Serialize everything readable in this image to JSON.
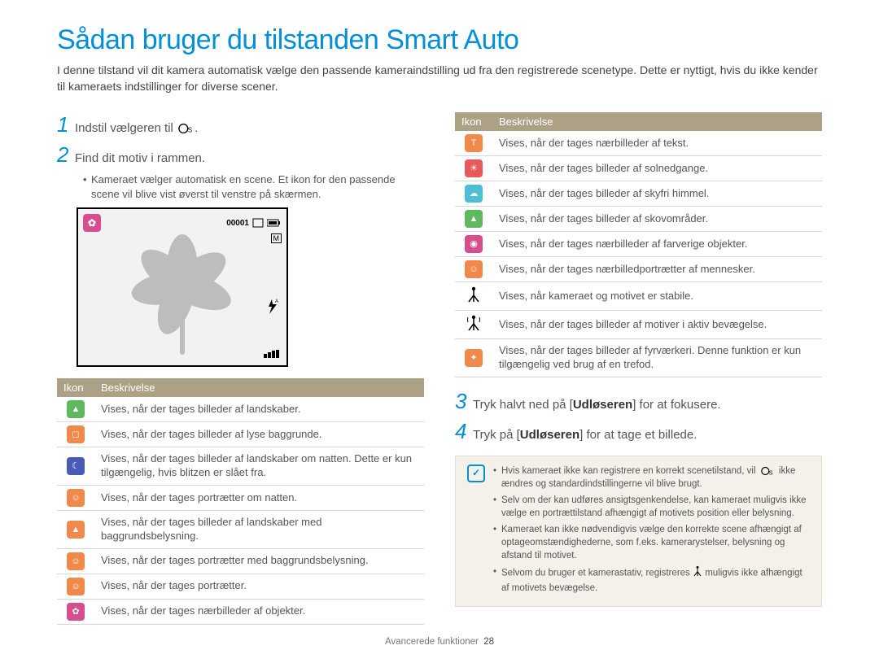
{
  "title": "Sådan bruger du tilstanden Smart Auto",
  "subtitle": "I denne tilstand vil dit kamera automatisk vælge den passende kameraindstilling ud fra den registrerede scenetype. Dette er nyttigt, hvis du ikke kender til kameraets indstillinger for diverse scener.",
  "steps": {
    "s1": "Indstil vælgeren til",
    "s1_suffix": ".",
    "s2": "Find dit motiv i rammen.",
    "s2_bullet": "Kameraet vælger automatisk en scene. Et ikon for den passende scene vil blive vist øverst til venstre på skærmen.",
    "s3_pre": "Tryk halvt ned på [",
    "s3_bold": "Udløseren",
    "s3_post": "] for at fokusere.",
    "s4_pre": "Tryk på [",
    "s4_bold": "Udløseren",
    "s4_post": "] for at tage et billede."
  },
  "table_headers": {
    "icon": "Ikon",
    "desc": "Beskrivelse"
  },
  "table_left": [
    {
      "color": "#5fb75f",
      "glyph": "▲",
      "desc": "Vises, når der tages billeder af landskaber."
    },
    {
      "color": "#f0894a",
      "glyph": "◻",
      "desc": "Vises, når der tages billeder af lyse baggrunde."
    },
    {
      "color": "#4a5ab5",
      "glyph": "☾",
      "desc": "Vises, når der tages billeder af landskaber om natten. Dette er kun tilgængelig, hvis blitzen er slået fra."
    },
    {
      "color": "#f0894a",
      "glyph": "☺",
      "desc": "Vises, når der tages portrætter om natten."
    },
    {
      "color": "#f0894a",
      "glyph": "▲",
      "desc": "Vises, når der tages billeder af landskaber med baggrundsbelysning."
    },
    {
      "color": "#f0894a",
      "glyph": "☺",
      "desc": "Vises, når der tages portrætter med baggrundsbelysning."
    },
    {
      "color": "#f0894a",
      "glyph": "☺",
      "desc": "Vises, når der tages portrætter."
    },
    {
      "color": "#d64e8e",
      "glyph": "✿",
      "desc": "Vises, når der tages nærbilleder af objekter."
    }
  ],
  "table_right": [
    {
      "color": "#f0894a",
      "glyph": "T",
      "desc": "Vises, når der tages nærbilleder af tekst."
    },
    {
      "color": "#e85a5a",
      "glyph": "☀",
      "desc": "Vises, når der tages billeder af solnedgange."
    },
    {
      "color": "#4bbfd4",
      "glyph": "☁",
      "desc": "Vises, når der tages billeder af skyfri himmel."
    },
    {
      "color": "#5fb75f",
      "glyph": "▲",
      "desc": "Vises, når der tages billeder af skovområder."
    },
    {
      "color": "#d64e8e",
      "glyph": "◉",
      "desc": "Vises, når der tages nærbilleder af farverige objekter."
    },
    {
      "color": "#f0894a",
      "glyph": "☺",
      "desc": "Vises, når der tages nærbilledportrætter af mennesker."
    },
    {
      "mono": true,
      "glyph": "tripod-still",
      "desc": "Vises, når kameraet og motivet er stabile."
    },
    {
      "mono": true,
      "glyph": "tripod-move",
      "desc": "Vises, når der tages billeder af motiver i aktiv bevægelse."
    },
    {
      "color": "#f0894a",
      "glyph": "✦",
      "desc": "Vises, når der tages billeder af fyrværkeri. Denne funktion er kun tilgængelig ved brug af en trefod."
    }
  ],
  "notes": [
    "Hvis kameraet ikke kan registrere en korrekt scenetilstand, vil     ikke ændres og standardindstillingerne vil blive brugt.",
    "Selv om der kan udføres ansigtsgenkendelse, kan kameraet muligvis ikke vælge en portrættilstand afhængigt af motivets position eller belysning.",
    "Kameraet kan ikke nødvendigvis vælge den korrekte scene afhængigt af optageomstændighederne, som f.eks. kamerarystelser, belysning og afstand til motivet.",
    "Selvom du bruger et kamerastativ, registreres     muligvis ikke afhængigt af motivets bevægelse."
  ],
  "footer": {
    "section": "Avancerede funktioner",
    "page": "28"
  },
  "preview": {
    "counter": "00001",
    "size_badge": "M",
    "flash": "A"
  }
}
